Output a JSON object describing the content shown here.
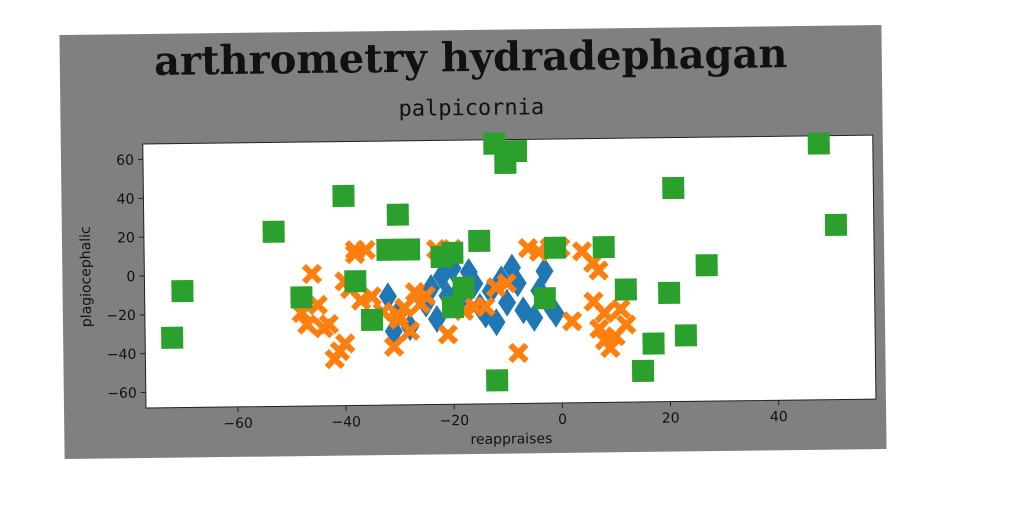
{
  "title": "arthrometry hydradephagan",
  "chart_data": {
    "type": "scatter",
    "title": "palpicornia",
    "xlabel": "reappraises",
    "ylabel": "plagiocephalic",
    "xlim": [
      -77,
      58
    ],
    "ylim": [
      -68,
      68
    ],
    "xticks": [
      -60,
      -40,
      -20,
      0,
      20,
      40
    ],
    "yticks": [
      -60,
      -40,
      -20,
      0,
      20,
      40,
      60
    ],
    "grid": false,
    "series": [
      {
        "marker": "diamond",
        "color": "#1f77b4",
        "x": [
          -32,
          -30,
          -28,
          -25,
          -23,
          -22,
          -20,
          -19,
          -18,
          -17,
          -16,
          -15,
          -14,
          -13,
          -12,
          -11,
          -10,
          -9,
          -8,
          -7,
          -5,
          -4,
          -3,
          -2,
          -1,
          -31,
          -24,
          -21
        ],
        "y": [
          -12,
          -20,
          -28,
          -16,
          -24,
          -2,
          2,
          -10,
          -14,
          0,
          -6,
          -18,
          -22,
          -10,
          -26,
          -4,
          -16,
          2,
          -6,
          -20,
          -24,
          -10,
          0,
          -18,
          -22,
          -30,
          -8,
          -12
        ]
      },
      {
        "marker": "x",
        "color": "#ff7f0e",
        "x": [
          -48,
          -47,
          -46,
          -45,
          -44,
          -43,
          -42,
          -41,
          -40,
          -39,
          -38,
          -37,
          -36,
          -35,
          -33,
          -31,
          -30,
          -29,
          -28,
          -26,
          -25,
          -23,
          -21,
          -18,
          -16,
          -14,
          -12,
          -10,
          -8,
          -6,
          -4,
          -2,
          0,
          2,
          4,
          6,
          7,
          8,
          9,
          10,
          11,
          12,
          7,
          -38,
          -40,
          -20,
          8,
          6,
          -27,
          -30
        ],
        "y": [
          -20,
          -26,
          0,
          -16,
          -28,
          -26,
          -44,
          -40,
          -36,
          -8,
          12,
          -14,
          12,
          -12,
          -20,
          -38,
          -22,
          -18,
          -30,
          -16,
          -12,
          12,
          -32,
          -20,
          -18,
          -18,
          -8,
          -6,
          -42,
          12,
          10,
          12,
          12,
          -26,
          10,
          -16,
          -30,
          -22,
          -40,
          -34,
          -20,
          -28,
          0,
          10,
          -4,
          12,
          -36,
          4,
          -10,
          -24
        ]
      },
      {
        "marker": "square",
        "color": "#2ca02c",
        "x": [
          -70,
          -72,
          -53,
          -48,
          -40,
          -38,
          -35,
          -32,
          -30,
          -28,
          -22,
          -20,
          -18,
          -15,
          -12,
          -10,
          -8,
          -3,
          -1,
          8,
          12,
          15,
          17,
          20,
          21,
          23,
          27,
          48,
          51,
          -12,
          -20
        ],
        "y": [
          -8,
          -32,
          22,
          -12,
          40,
          -4,
          -24,
          12,
          30,
          12,
          8,
          10,
          -8,
          16,
          -56,
          56,
          62,
          -14,
          12,
          12,
          -10,
          -52,
          -38,
          -12,
          42,
          -34,
          2,
          64,
          22,
          66,
          -18
        ]
      }
    ]
  }
}
